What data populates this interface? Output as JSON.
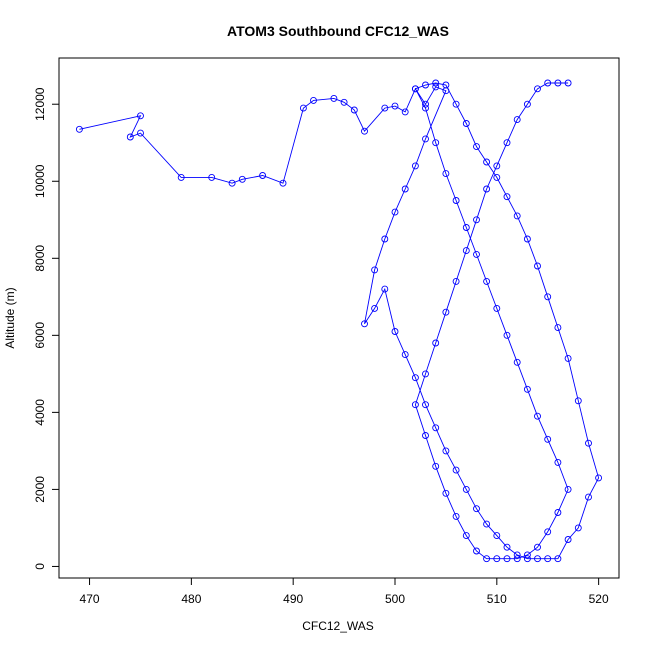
{
  "chart_data": {
    "type": "line",
    "title": "ATOM3 Southbound CFC12_WAS",
    "xlabel": "CFC12_WAS",
    "ylabel": "Altitude (m)",
    "xlim": [
      467,
      522
    ],
    "ylim": [
      -300,
      13200
    ],
    "xticks": [
      470,
      480,
      490,
      500,
      510,
      520
    ],
    "yticks": [
      0,
      2000,
      4000,
      6000,
      8000,
      10000,
      12000
    ],
    "grid": false,
    "color": "#0000FF",
    "marker": "open-circle",
    "series": [
      {
        "x": [
          469,
          475,
          474,
          475,
          479,
          482,
          484,
          485,
          487,
          489,
          491,
          492,
          494,
          495,
          496,
          497,
          499,
          500,
          501,
          502,
          503,
          504,
          505,
          503,
          502,
          501,
          500,
          499,
          498,
          497,
          498,
          499,
          500,
          501,
          502,
          503,
          504,
          505,
          506,
          507,
          508,
          509,
          510,
          511,
          512,
          513,
          514,
          515,
          516,
          517,
          518,
          519,
          520,
          519,
          518,
          517,
          516,
          515,
          514,
          513,
          512,
          511,
          510,
          509,
          508,
          507,
          506,
          505,
          504,
          503,
          502,
          503,
          504,
          505,
          506,
          507,
          508,
          509,
          510,
          511,
          512,
          513,
          514,
          515,
          516,
          517,
          516,
          515,
          514,
          513,
          512,
          511,
          510,
          509,
          508,
          507,
          506,
          505,
          504,
          503,
          502,
          503,
          504,
          505,
          506,
          507,
          508,
          509,
          510,
          511,
          512,
          513,
          514,
          515,
          516,
          517
        ],
        "y": [
          11350,
          11700,
          11150,
          11250,
          10100,
          10100,
          9950,
          10050,
          10150,
          9950,
          11900,
          12100,
          12150,
          12050,
          11850,
          11300,
          11900,
          11950,
          11800,
          12400,
          12000,
          12450,
          12350,
          11100,
          10400,
          9800,
          9200,
          8500,
          7700,
          6300,
          6700,
          7200,
          6100,
          5500,
          4900,
          4200,
          3600,
          3000,
          2500,
          2000,
          1500,
          1100,
          800,
          500,
          300,
          200,
          200,
          200,
          200,
          700,
          1000,
          1800,
          2300,
          3200,
          4300,
          5400,
          6200,
          7000,
          7800,
          8500,
          9100,
          9600,
          10100,
          10500,
          10900,
          11500,
          12000,
          12500,
          12550,
          12500,
          12400,
          11900,
          11000,
          10200,
          9500,
          8800,
          8100,
          7400,
          6700,
          6000,
          5300,
          4600,
          3900,
          3300,
          2700,
          2000,
          1400,
          900,
          500,
          300,
          200,
          200,
          200,
          200,
          400,
          800,
          1300,
          1900,
          2600,
          3400,
          4200,
          5000,
          5800,
          6600,
          7400,
          8200,
          9000,
          9800,
          10400,
          11000,
          11600,
          12000,
          12400,
          12550,
          12550,
          12550
        ]
      }
    ]
  }
}
